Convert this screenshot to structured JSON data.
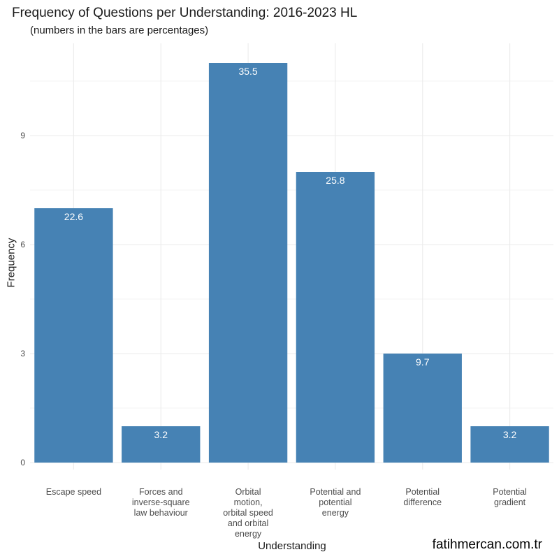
{
  "chart_data": {
    "type": "bar",
    "title": "Frequency of Questions per Understanding: 2016-2023 HL",
    "subtitle": "(numbers in the bars are percentages)",
    "xlabel": "Understanding",
    "ylabel": "Frequency",
    "categories": [
      [
        "Escape speed"
      ],
      [
        "Forces and",
        "inverse-square",
        "law behaviour"
      ],
      [
        "Orbital",
        "motion,",
        "orbital speed",
        "and orbital",
        "energy"
      ],
      [
        "Potential and",
        "potential",
        "energy"
      ],
      [
        "Potential",
        "difference"
      ],
      [
        "Potential",
        "gradient"
      ]
    ],
    "values": [
      7,
      1,
      11,
      8,
      3,
      1
    ],
    "bar_labels": [
      "22.6",
      "3.2",
      "35.5",
      "25.8",
      "9.7",
      "3.2"
    ],
    "yticks": [
      0,
      3,
      6,
      9
    ],
    "ylim": [
      0,
      11.5
    ],
    "grid": true,
    "bar_color": "#4682B4"
  },
  "watermark": "fatihmercan.com.tr"
}
